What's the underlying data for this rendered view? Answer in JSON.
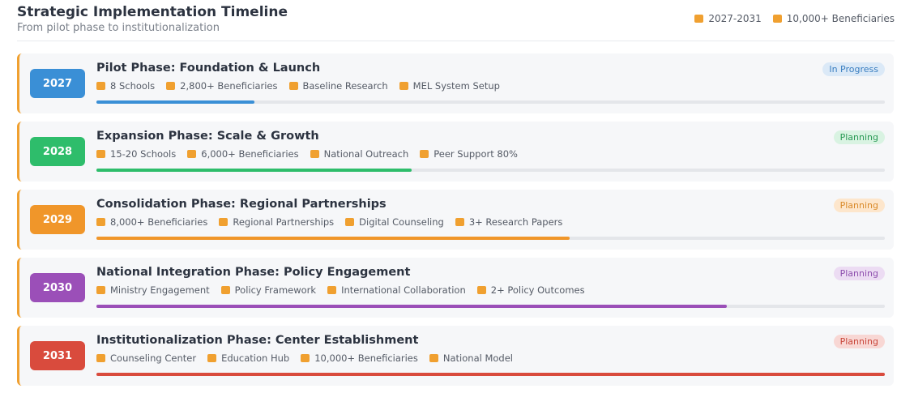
{
  "header": {
    "title": "Strategic Implementation Timeline",
    "subtitle": "From pilot phase to institutionalization",
    "meta": [
      "2027-2031",
      "10,000+ Beneficiaries"
    ]
  },
  "phases": [
    {
      "year": "2027",
      "title": "Pilot Phase: Foundation & Launch",
      "status": "In Progress",
      "color": "#3a8fd6",
      "items": [
        "8 Schools",
        "2,800+ Beneficiaries",
        "Baseline Research",
        "MEL System Setup"
      ],
      "progress": 20
    },
    {
      "year": "2028",
      "title": "Expansion Phase: Scale & Growth",
      "status": "Planning",
      "color": "#2ebd6b",
      "items": [
        "15-20 Schools",
        "6,000+ Beneficiaries",
        "National Outreach",
        "Peer Support 80%"
      ],
      "progress": 40
    },
    {
      "year": "2029",
      "title": "Consolidation Phase: Regional Partnerships",
      "status": "Planning",
      "color": "#f0962a",
      "items": [
        "8,000+ Beneficiaries",
        "Regional Partnerships",
        "Digital Counseling",
        "3+ Research Papers"
      ],
      "progress": 60
    },
    {
      "year": "2030",
      "title": "National Integration Phase: Policy Engagement",
      "status": "Planning",
      "color": "#9b4fb8",
      "items": [
        "Ministry Engagement",
        "Policy Framework",
        "International Collaboration",
        "2+ Policy Outcomes"
      ],
      "progress": 80
    },
    {
      "year": "2031",
      "title": "Institutionalization Phase: Center Establishment",
      "status": "Planning",
      "color": "#d94b3d",
      "items": [
        "Counseling Center",
        "Education Hub",
        "10,000+ Beneficiaries",
        "National Model"
      ],
      "progress": 100
    }
  ]
}
